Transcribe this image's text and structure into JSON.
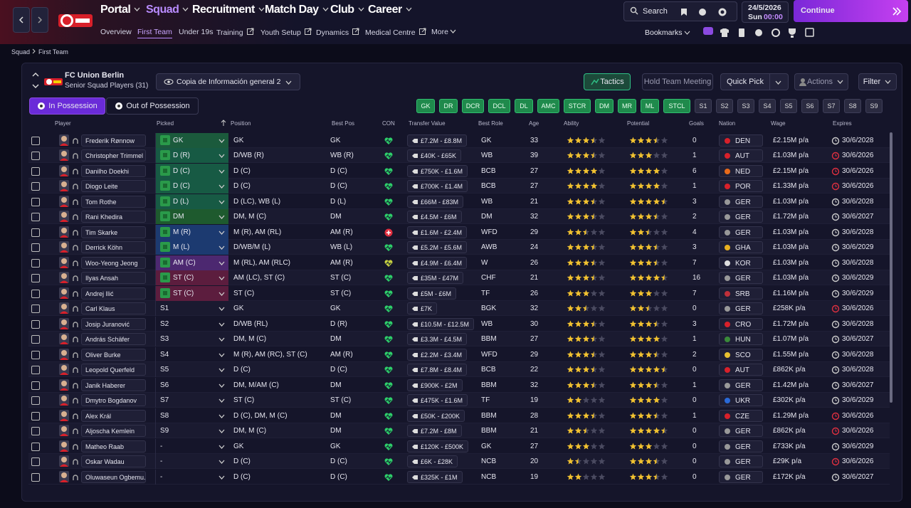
{
  "nav": {
    "menus": [
      "Portal",
      "Squad",
      "Recruitment",
      "Match Day",
      "Club",
      "Career"
    ],
    "subnav": [
      "Overview",
      "First Team",
      "Under 19s",
      "Training",
      "Youth Setup",
      "Dynamics",
      "Medical Centre",
      "More"
    ],
    "search": "Search",
    "date": "24/5/2026",
    "day": "Sun",
    "time": "00:00",
    "continue": "Continue",
    "bookmarks": "Bookmarks"
  },
  "breadcrumb": [
    "Squad",
    "First Team"
  ],
  "club": {
    "name": "FC Union Berlin",
    "subtitle": "Senior Squad Players (31)",
    "view": "Copia de Información general 2"
  },
  "buttons": [
    "Tactics",
    "Hold Team Meeting",
    "Quick Pick",
    "Actions",
    "Filter"
  ],
  "tabs": [
    "In Possession",
    "Out of Possession"
  ],
  "positions": [
    "GK",
    "DR",
    "DCR",
    "DCL",
    "DL",
    "AMC",
    "STCR",
    "DM",
    "MR",
    "ML",
    "STCL",
    "S1",
    "S2",
    "S3",
    "S4",
    "S5",
    "S6",
    "S7",
    "S8",
    "S9"
  ],
  "table": {
    "columns": [
      "Player",
      "Picked",
      "Position",
      "Best Pos",
      "CON",
      "Transfer Value",
      "Best Role",
      "Age",
      "Ability",
      "Potential",
      "Goals",
      "Nation",
      "Wage",
      "Expires"
    ],
    "rows": [
      {
        "player": "Frederik Rønnow",
        "picked": "GK",
        "position": "GK",
        "best_pos": "GK",
        "value": "£7.2M - £8.8M",
        "role": "GK",
        "age": 33,
        "ability": 3.5,
        "potential": 3.5,
        "goals": 0,
        "nation": "DEN",
        "wage": "£2.15M p/a",
        "expires": "30/6/2028"
      },
      {
        "player": "Christopher Trimmel",
        "picked": "D (R)",
        "position": "D/WB (R)",
        "best_pos": "WB (R)",
        "value": "£40K - £65K",
        "role": "WB",
        "age": 39,
        "ability": 3.5,
        "potential": 3,
        "goals": 1,
        "nation": "AUT",
        "wage": "£1.03M p/a",
        "expires": "30/6/2026"
      },
      {
        "player": "Danilho Doekhi",
        "picked": "D (C)",
        "position": "D (C)",
        "best_pos": "D (C)",
        "value": "£750K - £1.6M",
        "role": "BCB",
        "age": 27,
        "ability": 4,
        "potential": 4,
        "goals": 6,
        "nation": "NED",
        "wage": "£2.15M p/a",
        "expires": "30/6/2026"
      },
      {
        "player": "Diogo Leite",
        "picked": "D (C)",
        "position": "D (C)",
        "best_pos": "D (C)",
        "value": "£700K - £1.4M",
        "role": "BCB",
        "age": 27,
        "ability": 4,
        "potential": 4,
        "goals": 1,
        "nation": "POR",
        "wage": "£1.33M p/a",
        "expires": "30/6/2026"
      },
      {
        "player": "Tom Rothe",
        "picked": "D (L)",
        "position": "D (LC), WB (L)",
        "best_pos": "D (L)",
        "value": "£66M - £83M",
        "role": "WB",
        "age": 21,
        "ability": 3.5,
        "potential": 4.5,
        "goals": 3,
        "nation": "GER",
        "wage": "£1.03M p/a",
        "expires": "30/6/2028"
      },
      {
        "player": "Rani Khedira",
        "picked": "DM",
        "position": "DM, M (C)",
        "best_pos": "DM",
        "value": "£4.5M - £6M",
        "role": "DM",
        "age": 32,
        "ability": 3.5,
        "potential": 3.5,
        "goals": 2,
        "nation": "GER",
        "wage": "£1.72M p/a",
        "expires": "30/6/2027"
      },
      {
        "player": "Tim Skarke",
        "picked": "M (R)",
        "position": "M (R), AM (RL)",
        "best_pos": "AM (R)",
        "value": "£1.6M - £2.4M",
        "role": "WFD",
        "age": 29,
        "ability": 2.5,
        "potential": 2.5,
        "goals": 4,
        "nation": "GER",
        "wage": "£1.03M p/a",
        "expires": "30/6/2028"
      },
      {
        "player": "Derrick Köhn",
        "picked": "M (L)",
        "position": "D/WB/M (L)",
        "best_pos": "WB (L)",
        "value": "£5.2M - £5.6M",
        "role": "AWB",
        "age": 24,
        "ability": 3.5,
        "potential": 3.5,
        "goals": 3,
        "nation": "GHA",
        "wage": "£1.03M p/a",
        "expires": "30/6/2029"
      },
      {
        "player": "Woo-Yeong Jeong",
        "picked": "AM (C)",
        "position": "M (RL), AM (RLC)",
        "best_pos": "AM (R)",
        "value": "£4.9M - £6.4M",
        "role": "W",
        "age": 26,
        "ability": 3.5,
        "potential": 3.5,
        "goals": 7,
        "nation": "KOR",
        "wage": "£1.03M p/a",
        "expires": "30/6/2028"
      },
      {
        "player": "Ilyas Ansah",
        "picked": "ST (C)",
        "position": "AM (LC), ST (C)",
        "best_pos": "ST (C)",
        "value": "£35M - £47M",
        "role": "CHF",
        "age": 21,
        "ability": 3.5,
        "potential": 4.5,
        "goals": 16,
        "nation": "GER",
        "wage": "£1.03M p/a",
        "expires": "30/6/2029"
      },
      {
        "player": "Andrej Ilić",
        "picked": "ST (C)",
        "position": "ST (C)",
        "best_pos": "ST (C)",
        "value": "£5M - £6M",
        "role": "TF",
        "age": 26,
        "ability": 3,
        "potential": 3,
        "goals": 7,
        "nation": "SRB",
        "wage": "£1.16M p/a",
        "expires": "30/6/2029"
      },
      {
        "player": "Carl Klaus",
        "picked": "S1",
        "position": "GK",
        "best_pos": "GK",
        "value": "£7K",
        "role": "BGK",
        "age": 32,
        "ability": 2.5,
        "potential": 2.5,
        "goals": 0,
        "nation": "GER",
        "wage": "£258K p/a",
        "expires": "30/6/2026"
      },
      {
        "player": "Josip Juranović",
        "picked": "S2",
        "position": "D/WB (RL)",
        "best_pos": "D (R)",
        "value": "£10.5M - £12.5M",
        "role": "WB",
        "age": 30,
        "ability": 3.5,
        "potential": 3.5,
        "goals": 3,
        "nation": "CRO",
        "wage": "£1.72M p/a",
        "expires": "30/6/2028"
      },
      {
        "player": "András Schäfer",
        "picked": "S3",
        "position": "DM, M (C)",
        "best_pos": "DM",
        "value": "£3.3M - £4.5M",
        "role": "BBM",
        "age": 27,
        "ability": 3.5,
        "potential": 4,
        "goals": 1,
        "nation": "HUN",
        "wage": "£1.07M p/a",
        "expires": "30/6/2027"
      },
      {
        "player": "Oliver Burke",
        "picked": "S4",
        "position": "M (R), AM (RC), ST (C)",
        "best_pos": "AM (R)",
        "value": "£2.2M - £3.4M",
        "role": "WFD",
        "age": 29,
        "ability": 3.5,
        "potential": 3.5,
        "goals": 2,
        "nation": "SCO",
        "wage": "£1.55M p/a",
        "expires": "30/6/2028"
      },
      {
        "player": "Leopold Querfeld",
        "picked": "S5",
        "position": "D (C)",
        "best_pos": "D (C)",
        "value": "£7.8M - £8.4M",
        "role": "BCB",
        "age": 22,
        "ability": 3.5,
        "potential": 4.5,
        "goals": 0,
        "nation": "AUT",
        "wage": "£862K p/a",
        "expires": "30/6/2028"
      },
      {
        "player": "Janik Haberer",
        "picked": "S6",
        "position": "DM, M/AM (C)",
        "best_pos": "DM",
        "value": "£900K - £2M",
        "role": "BBM",
        "age": 32,
        "ability": 3.5,
        "potential": 3.5,
        "goals": 1,
        "nation": "GER",
        "wage": "£1.42M p/a",
        "expires": "30/6/2027"
      },
      {
        "player": "Dmytro Bogdanov",
        "picked": "S7",
        "position": "ST (C)",
        "best_pos": "ST (C)",
        "value": "£475K - £1.6M",
        "role": "TF",
        "age": 19,
        "ability": 2,
        "potential": 4,
        "goals": 0,
        "nation": "UKR",
        "wage": "£302K p/a",
        "expires": "30/6/2029"
      },
      {
        "player": "Alex Král",
        "picked": "S8",
        "position": "D (C), DM, M (C)",
        "best_pos": "DM",
        "value": "£50K - £200K",
        "role": "BBM",
        "age": 28,
        "ability": 3.5,
        "potential": 3.5,
        "goals": 1,
        "nation": "CZE",
        "wage": "£1.29M p/a",
        "expires": "30/6/2026"
      },
      {
        "player": "Aljoscha Kemlein",
        "picked": "S9",
        "position": "DM, M (C)",
        "best_pos": "DM",
        "value": "£7.2M - £8M",
        "role": "BBM",
        "age": 21,
        "ability": 2.5,
        "potential": 4.5,
        "goals": 0,
        "nation": "GER",
        "wage": "£862K p/a",
        "expires": "30/6/2026"
      },
      {
        "player": "Matheo Raab",
        "picked": "-",
        "position": "GK",
        "best_pos": "GK",
        "value": "£120K - £500K",
        "role": "GK",
        "age": 27,
        "ability": 3,
        "potential": 3,
        "goals": 0,
        "nation": "GER",
        "wage": "£733K p/a",
        "expires": "30/6/2029"
      },
      {
        "player": "Oskar Wadau",
        "picked": "-",
        "position": "D (C)",
        "best_pos": "D (C)",
        "value": "£6K - £28K",
        "role": "NCB",
        "age": 20,
        "ability": 1.5,
        "potential": 3.5,
        "goals": 0,
        "nation": "GER",
        "wage": "£29K p/a",
        "expires": "30/6/2026"
      },
      {
        "player": "Oluwaseun Ogbemu...",
        "picked": "-",
        "position": "D (C)",
        "best_pos": "D (C)",
        "value": "£325K - £1M",
        "role": "NCB",
        "age": 19,
        "ability": 2,
        "potential": 3.5,
        "goals": 0,
        "nation": "GER",
        "wage": "£172K p/a",
        "expires": "30/6/2027"
      }
    ]
  }
}
